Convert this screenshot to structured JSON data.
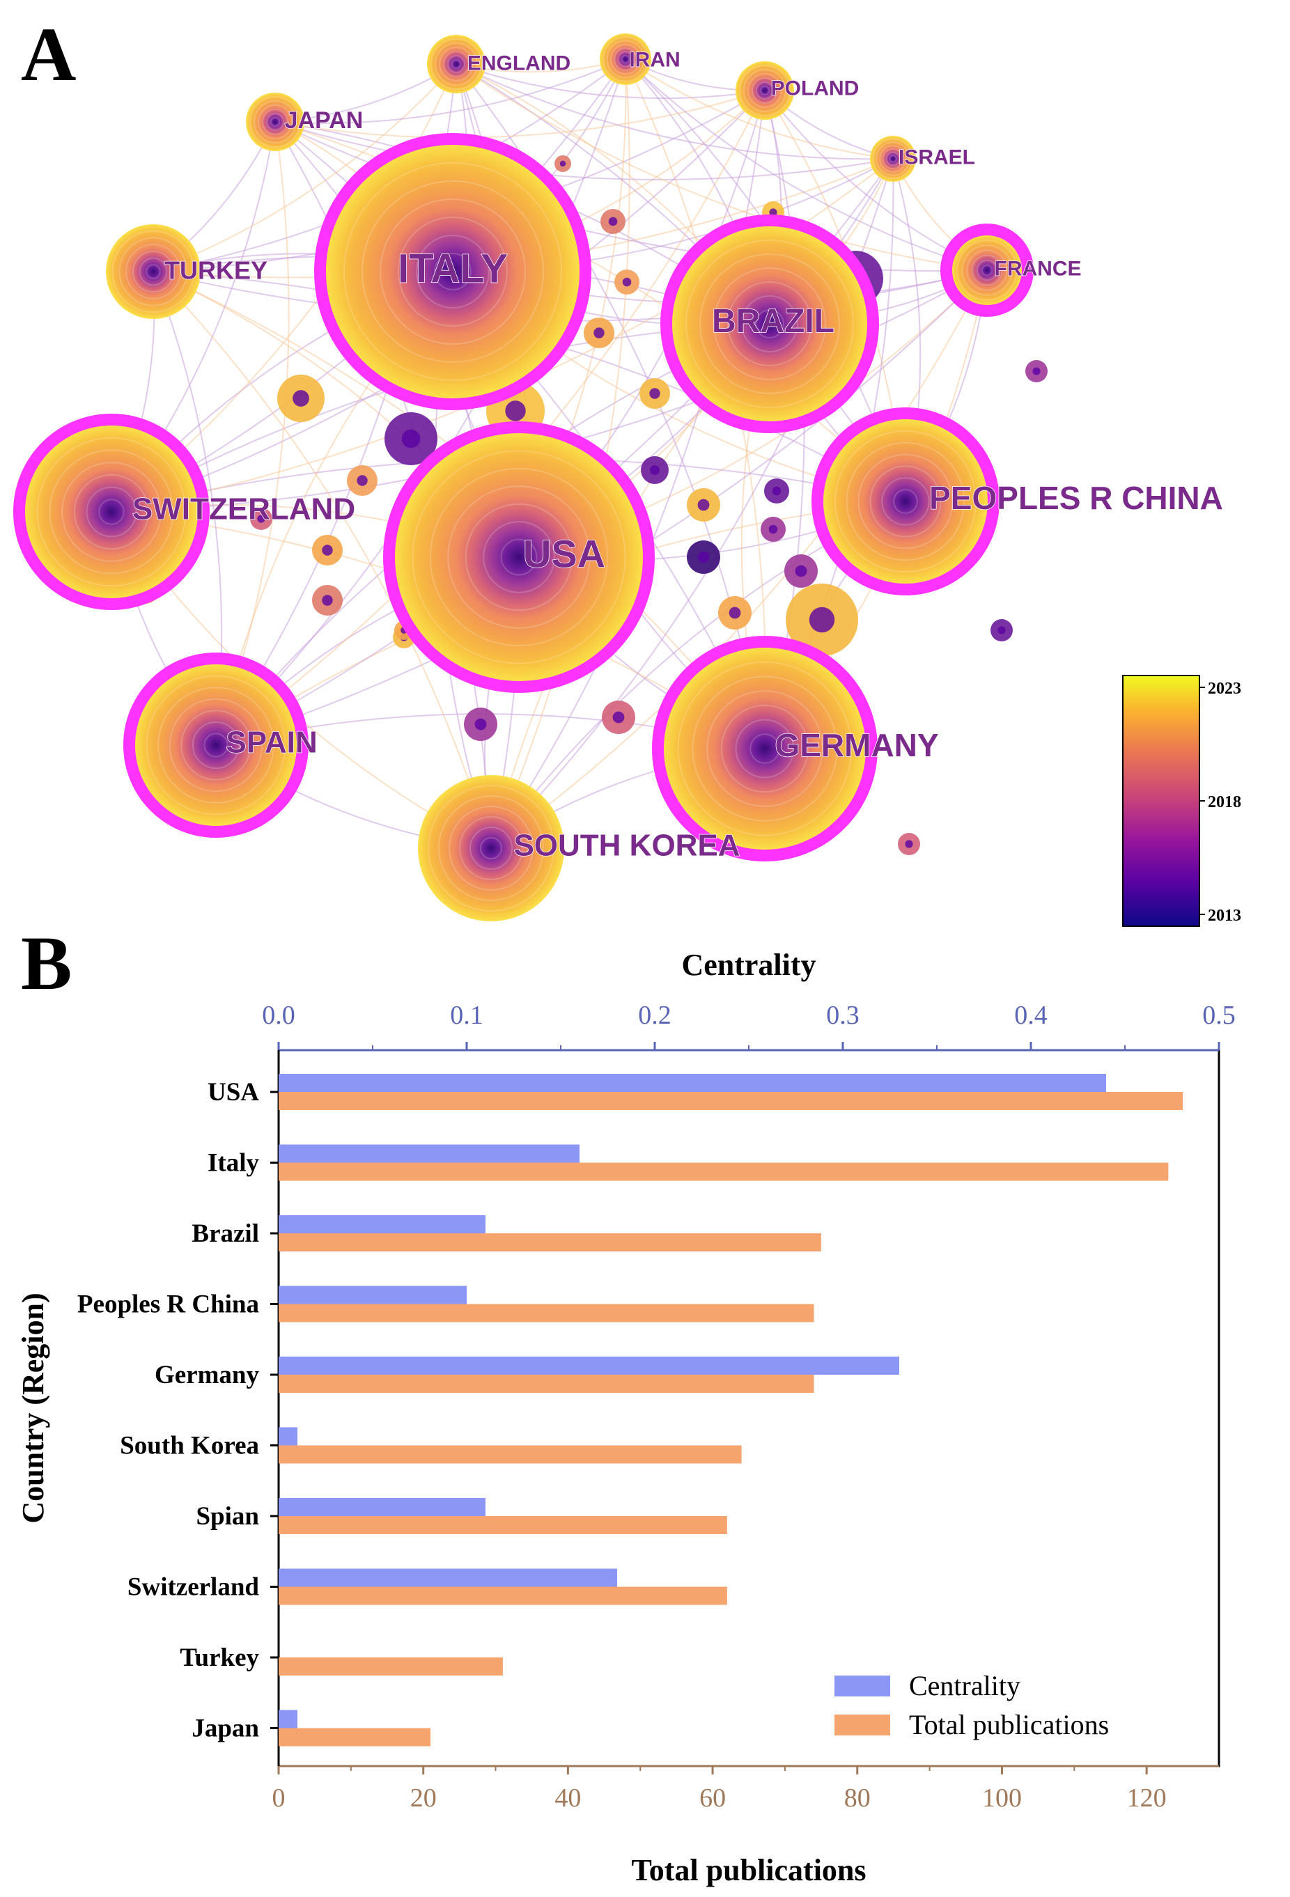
{
  "panel_a": {
    "letter": "A",
    "nodes": [
      {
        "label": "ITALY",
        "size": 36,
        "burst": true
      },
      {
        "label": "USA",
        "size": 34,
        "burst": true
      },
      {
        "label": "BRAZIL",
        "size": 30,
        "burst": true
      },
      {
        "label": "PEOPLES R CHINA",
        "size": 28,
        "burst": true
      },
      {
        "label": "GERMANY",
        "size": 30,
        "burst": true
      },
      {
        "label": "SWITZERLAND",
        "size": 26,
        "burst": true
      },
      {
        "label": "SPAIN",
        "size": 24,
        "burst": true
      },
      {
        "label": "SOUTH KOREA",
        "size": 22,
        "burst": false
      },
      {
        "label": "TURKEY",
        "size": 14,
        "burst": false
      },
      {
        "label": "JAPAN",
        "size": 10,
        "burst": false
      },
      {
        "label": "ENGLAND",
        "size": 10,
        "burst": false
      },
      {
        "label": "IRAN",
        "size": 8,
        "burst": false
      },
      {
        "label": "POLAND",
        "size": 9,
        "burst": false
      },
      {
        "label": "ISRAEL",
        "size": 7,
        "burst": false
      },
      {
        "label": "FRANCE",
        "size": 10,
        "burst": true
      }
    ],
    "timeline": {
      "start_label": "2013",
      "mid_label": "2018",
      "end_label": "2023"
    },
    "colors": {
      "burst_ring": "#ff33ff",
      "link": "#c8a0dc"
    }
  },
  "panel_b": {
    "letter": "B"
  },
  "chart_data": {
    "type": "bar",
    "orientation": "horizontal",
    "categories": [
      "USA",
      "Italy",
      "Brazil",
      "Peoples R China",
      "Germany",
      "South Korea",
      "Spian",
      "Switzerland",
      "Turkey",
      "Japan"
    ],
    "series": [
      {
        "name": "Centrality",
        "axis": "top",
        "color": "#8c96f5",
        "values": [
          0.44,
          0.16,
          0.11,
          0.1,
          0.33,
          0.01,
          0.11,
          0.18,
          0.0,
          0.01
        ]
      },
      {
        "name": "Total publications",
        "axis": "bottom",
        "color": "#f5a46e",
        "values": [
          125,
          123,
          75,
          74,
          74,
          64,
          62,
          62,
          31,
          21
        ]
      }
    ],
    "top_axis": {
      "label": "Centrality",
      "range": [
        0,
        0.5
      ],
      "ticks": [
        "0.0",
        "0.1",
        "0.2",
        "0.3",
        "0.4",
        "0.5"
      ]
    },
    "bottom_axis": {
      "label": "Total publications",
      "range": [
        0,
        130
      ],
      "ticks": [
        "0",
        "20",
        "40",
        "60",
        "80",
        "100",
        "120"
      ]
    },
    "ylabel": "Country (Region)",
    "legend": {
      "position": "bottom-right",
      "entries": [
        "Centrality",
        "Total publications"
      ]
    }
  }
}
